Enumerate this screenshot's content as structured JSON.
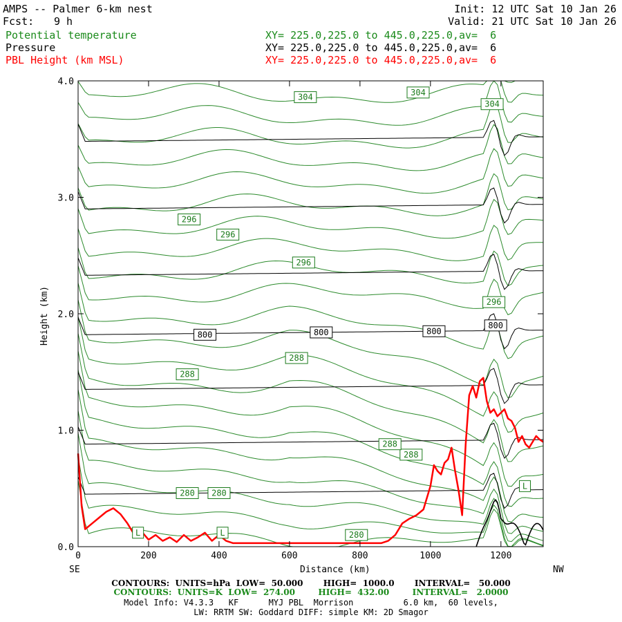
{
  "header": {
    "title": "AMPS -- Palmer 6-km nest",
    "forecast_label": "Fcst:",
    "forecast_value": "9 h",
    "init_time": "Init: 12 UTC Sat 10 Jan 26",
    "valid_time": "Valid: 21 UTC Sat 10 Jan 26",
    "fields": [
      {
        "name": "Potential temperature",
        "xy": "XY= 225.0,225.0 to 445.0,225.0,av=  6",
        "color": "#1a8a1a"
      },
      {
        "name": "Pressure",
        "xy": "XY= 225.0,225.0 to 445.0,225.0,av=  6",
        "color": "#000000"
      },
      {
        "name": "PBL Height (km MSL)",
        "xy": "XY= 225.0,225.0 to 445.0,225.0,av=  6",
        "color": "#ff0000"
      }
    ]
  },
  "chart_data": {
    "type": "line",
    "title": "AMPS -- Palmer 6-km nest",
    "xlabel": "Distance (km)",
    "ylabel": "Height (km)",
    "xlim": [
      0,
      1320
    ],
    "ylim": [
      0,
      4.0
    ],
    "x_ticks": [
      0,
      200,
      400,
      600,
      800,
      1000,
      1200
    ],
    "y_ticks": [
      "0.0",
      "1.0",
      "2.0",
      "3.0",
      "4.0"
    ],
    "x_end_labels": {
      "left": "SE",
      "right": "NW"
    },
    "pressure_contours_hPa": {
      "levels_km": [
        0.45,
        0.88,
        1.35,
        1.82,
        2.33,
        2.9,
        3.48
      ],
      "labels": [
        {
          "text": "800",
          "x": 360,
          "y": 1.82
        },
        {
          "text": "800",
          "x": 690,
          "y": 1.84
        },
        {
          "text": "800",
          "x": 1010,
          "y": 1.85
        },
        {
          "text": "800",
          "x": 1185,
          "y": 1.9
        }
      ]
    },
    "theta_contours_K": {
      "labels": [
        {
          "text": "304",
          "x": 645,
          "y": 3.86
        },
        {
          "text": "304",
          "x": 965,
          "y": 3.9
        },
        {
          "text": "304",
          "x": 1175,
          "y": 3.8
        },
        {
          "text": "296",
          "x": 315,
          "y": 2.81
        },
        {
          "text": "296",
          "x": 425,
          "y": 2.68
        },
        {
          "text": "296",
          "x": 640,
          "y": 2.44
        },
        {
          "text": "296",
          "x": 1180,
          "y": 2.1
        },
        {
          "text": "288",
          "x": 310,
          "y": 1.48
        },
        {
          "text": "288",
          "x": 620,
          "y": 1.62
        },
        {
          "text": "288",
          "x": 945,
          "y": 0.79
        },
        {
          "text": "288",
          "x": 885,
          "y": 0.88
        },
        {
          "text": "280",
          "x": 310,
          "y": 0.46
        },
        {
          "text": "280",
          "x": 400,
          "y": 0.46
        },
        {
          "text": "280",
          "x": 790,
          "y": 0.1
        }
      ]
    },
    "pbl_height_km": {
      "x": [
        0,
        10,
        20,
        40,
        60,
        80,
        100,
        120,
        140,
        160,
        180,
        200,
        220,
        240,
        260,
        280,
        300,
        320,
        340,
        360,
        380,
        400,
        420,
        440,
        500,
        600,
        700,
        800,
        860,
        880,
        900,
        920,
        940,
        960,
        980,
        1000,
        1010,
        1020,
        1030,
        1040,
        1050,
        1060,
        1070,
        1080,
        1090,
        1100,
        1110,
        1120,
        1130,
        1140,
        1150,
        1160,
        1170,
        1180,
        1190,
        1200,
        1210,
        1220,
        1230,
        1240,
        1250,
        1260,
        1270,
        1280,
        1290,
        1300,
        1310,
        1320
      ],
      "values": [
        0.8,
        0.35,
        0.15,
        0.2,
        0.25,
        0.3,
        0.33,
        0.28,
        0.2,
        0.1,
        0.13,
        0.06,
        0.1,
        0.05,
        0.08,
        0.04,
        0.1,
        0.05,
        0.08,
        0.12,
        0.05,
        0.1,
        0.05,
        0.03,
        0.03,
        0.03,
        0.03,
        0.03,
        0.03,
        0.05,
        0.1,
        0.2,
        0.24,
        0.27,
        0.32,
        0.52,
        0.7,
        0.65,
        0.62,
        0.72,
        0.75,
        0.85,
        0.65,
        0.48,
        0.27,
        0.88,
        1.3,
        1.38,
        1.28,
        1.42,
        1.45,
        1.25,
        1.15,
        1.18,
        1.12,
        1.15,
        1.18,
        1.1,
        1.08,
        1.02,
        0.9,
        0.95,
        0.88,
        0.85,
        0.9,
        0.95,
        0.92,
        0.9
      ],
      "color": "#ff0000"
    },
    "extremum_labels": [
      {
        "text": "L",
        "x": 170,
        "y": 0.12
      },
      {
        "text": "L",
        "x": 410,
        "y": 0.12
      },
      {
        "text": "L",
        "x": 1268,
        "y": 0.52
      }
    ]
  },
  "footer": {
    "line1": "CONTOURS:  UNITS=hPa  LOW=  50.000       HIGH=  1000.0       INTERVAL=   50.000",
    "line2": "CONTOURS:  UNITS=K  LOW=  274.00        HIGH=  432.00        INTERVAL=   2.0000",
    "line3": "Model Info: V4.3.3   KF      MYJ PBL  Morrison          6.0 km,  60 levels,",
    "line4": "LW: RRTM SW: Goddard DIFF: simple KM: 2D Smagor",
    "line2_color": "#1a8a1a"
  }
}
